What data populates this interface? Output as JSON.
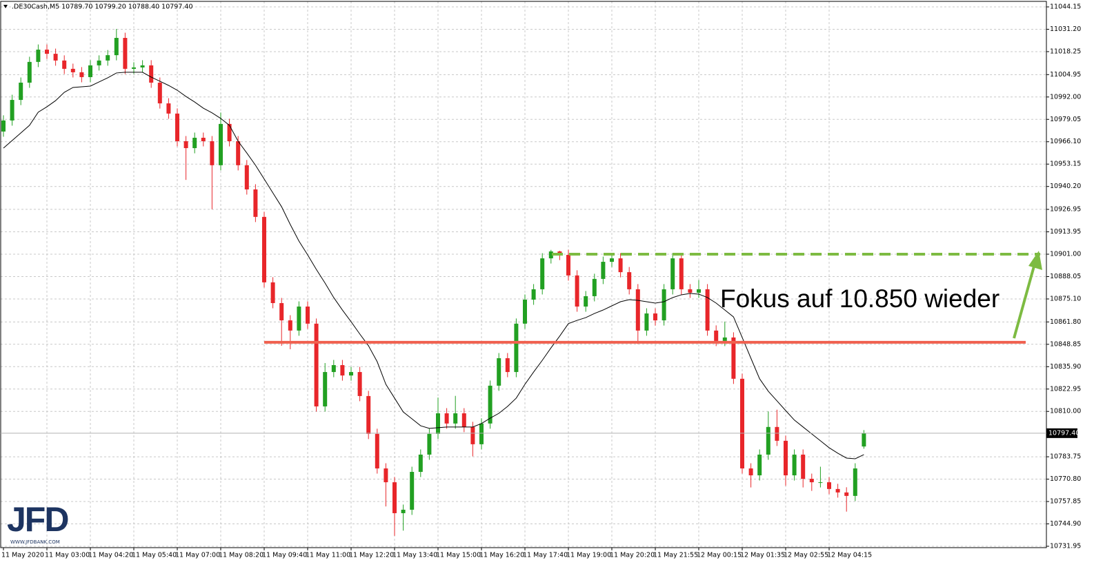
{
  "chart_data": {
    "type": "candlestick",
    "header": ".DE30Cash,M5  10789.70 10799.20 10788.40 10797.40",
    "annotation": "Fokus auf 10.850 wieder",
    "logo": {
      "text": "JFD",
      "url": "WWW.JFDBANK.COM"
    },
    "up_color": "#22a022",
    "down_color": "#e8262a",
    "grid": true,
    "categories": [
      "11 May 2020",
      null,
      null,
      null,
      null,
      "11 May 03:00",
      null,
      null,
      null,
      null,
      "11 May 04:20",
      null,
      null,
      null,
      null,
      "11 May 05:40",
      null,
      null,
      null,
      null,
      "11 May 07:00",
      null,
      null,
      null,
      null,
      "11 May 08:20",
      null,
      null,
      null,
      null,
      "11 May 09:40",
      null,
      null,
      null,
      null,
      "11 May 11:00",
      null,
      null,
      null,
      null,
      "11 May 12:20",
      null,
      null,
      null,
      null,
      "11 May 13:40",
      null,
      null,
      null,
      null,
      "11 May 15:00",
      null,
      null,
      null,
      null,
      "11 May 16:20",
      null,
      null,
      null,
      null,
      "11 May 17:40",
      null,
      null,
      null,
      null,
      "11 May 19:00",
      null,
      null,
      null,
      null,
      "11 May 20:20",
      null,
      null,
      null,
      null,
      "11 May 21:55",
      null,
      null,
      null,
      null,
      "12 May 00:15",
      null,
      null,
      null,
      null,
      "12 May 01:35",
      null,
      null,
      null,
      null,
      "12 May 02:55",
      null,
      null,
      null,
      null,
      "12 May 04:15",
      null,
      null,
      null,
      null
    ],
    "open": [
      10972,
      10978.4,
      10990.3,
      11000.3,
      11012.3,
      11019.4,
      11017,
      11013.1,
      11008.3,
      11006.3,
      11003.5,
      11010.3,
      11013.1,
      11016.2,
      11026.2,
      11008.3,
      11009.1,
      11010.3,
      11000.3,
      10988.3,
      10982.4,
      10966.4,
      10962.4,
      10968.4,
      10966.4,
      10952.5,
      10976.4,
      10966.4,
      10952.5,
      10938.5,
      10922.6,
      10884.7,
      10872.7,
      10862.7,
      10856.8,
      10870.7,
      10860.8,
      10812.9,
      10832.8,
      10836.8,
      10830.8,
      10832.8,
      10818.9,
      10797,
      10777,
      10769,
      10751.1,
      10753.1,
      10775,
      10785,
      10797,
      10808.9,
      10803,
      10808.9,
      10801,
      10791,
      10803,
      10824.9,
      10840.8,
      10832.8,
      10860.8,
      10874.7,
      10880.7,
      10898.6,
      10902.6,
      10900.6,
      10888.7,
      10870.7,
      10876.7,
      10886.7,
      10896.6,
      10898.6,
      10890.6,
      10880.7,
      10856.8,
      10866.7,
      10862.7,
      10880.7,
      10898.6,
      10880.7,
      10878.7,
      10880.7,
      10856.8,
      10850.8,
      10852.8,
      10828.9,
      10777,
      10773,
      10785,
      10801,
      10793,
      10773,
      10785,
      10771,
      10769,
      10769,
      10765.1,
      10763.1,
      10761.1,
      10789.7
    ],
    "high": [
      10981.4,
      10993.3,
      11003.3,
      11015.3,
      11022.4,
      11022.4,
      11020,
      11016.1,
      11011.3,
      11009.3,
      11013.3,
      11016.1,
      11019.2,
      11031.4,
      11029.2,
      11012.1,
      11013.3,
      11013.3,
      11003.3,
      10991.3,
      10985.4,
      10969.4,
      10971.4,
      10971.4,
      10969.4,
      10983,
      10979.4,
      10969.4,
      10955.5,
      10941.5,
      10925.6,
      10887.7,
      10875.7,
      10865.7,
      10873.7,
      10873.7,
      10863.8,
      10838,
      10839.8,
      10839.8,
      10835.8,
      10835.8,
      10821.9,
      10800,
      10780,
      10772,
      10756.1,
      10778,
      10788,
      10800,
      10818,
      10811.9,
      10819,
      10811.9,
      10804,
      10806,
      10827.9,
      10843.8,
      10843.8,
      10863.8,
      10877.7,
      10883.7,
      10901.6,
      10903.5,
      10903,
      10903.6,
      10891.7,
      10879.7,
      10889.7,
      10899.6,
      10901.6,
      10901.6,
      10893.6,
      10883.7,
      10869.7,
      10869.7,
      10883.7,
      10901.6,
      10901.6,
      10883.7,
      10886,
      10883.7,
      10859.8,
      10862,
      10855.8,
      10831.9,
      10780,
      10788,
      10810,
      10811,
      10796,
      10788,
      10788,
      10774,
      10778,
      10772,
      10768.1,
      10766.1,
      10780,
      10799.2
    ],
    "low": [
      10969,
      10975.4,
      10987.3,
      10997.3,
      11009.3,
      11014,
      11010.1,
      11005.3,
      11003.3,
      11000.5,
      11000.5,
      11007.3,
      11010.1,
      11013.2,
      11005.3,
      11005.3,
      11006.1,
      10997.3,
      10985.3,
      10979.4,
      10963.4,
      10944,
      10959.4,
      10963.4,
      10927,
      10949.5,
      10963.4,
      10949.5,
      10935.5,
      10919.6,
      10881.7,
      10869.7,
      10848,
      10846,
      10853.8,
      10857.8,
      10809.9,
      10809.9,
      10829.8,
      10827.8,
      10827.8,
      10815.9,
      10794,
      10774,
      10755,
      10738,
      10741,
      10750.1,
      10772,
      10782,
      10794,
      10800,
      10800,
      10798,
      10784,
      10788,
      10800,
      10821.9,
      10829.8,
      10829.8,
      10857.8,
      10871.7,
      10877.7,
      10895.6,
      10897.6,
      10885.7,
      10867.7,
      10867.7,
      10873.7,
      10883.7,
      10893.6,
      10887.6,
      10877.7,
      10849,
      10853.8,
      10859.7,
      10859.7,
      10877.7,
      10877.7,
      10875.7,
      10875.7,
      10853.8,
      10847.8,
      10847.8,
      10825.9,
      10774,
      10766,
      10770,
      10782,
      10790,
      10767,
      10770,
      10766,
      10764,
      10766,
      10762.1,
      10760.1,
      10752,
      10758.1,
      10788.4
    ],
    "close": [
      10978.4,
      10990.3,
      11000.3,
      11012.3,
      11019.4,
      11017,
      11013.1,
      11008.3,
      11006.3,
      11003.5,
      11010.3,
      11013.1,
      11016.2,
      11026.2,
      11008.3,
      11009.1,
      11010.3,
      11000.3,
      10988.3,
      10982.4,
      10966.4,
      10962.4,
      10968.4,
      10966.4,
      10952.5,
      10976.4,
      10966.4,
      10952.5,
      10938.5,
      10922.6,
      10884.7,
      10872.7,
      10862.7,
      10856.8,
      10870.7,
      10860.8,
      10812.9,
      10832.8,
      10836.8,
      10830.8,
      10832.8,
      10818.9,
      10797,
      10777,
      10769,
      10751.1,
      10753.1,
      10775,
      10785,
      10797,
      10808.9,
      10803,
      10808.9,
      10801,
      10791,
      10803,
      10824.9,
      10840.8,
      10832.8,
      10860.8,
      10874.7,
      10880.7,
      10898.6,
      10902.6,
      10900.6,
      10888.7,
      10870.7,
      10876.7,
      10886.7,
      10896.6,
      10898.6,
      10890.6,
      10880.7,
      10856.8,
      10866.7,
      10862.7,
      10880.7,
      10898.6,
      10880.7,
      10878.7,
      10880.7,
      10856.8,
      10850.8,
      10852.8,
      10828.9,
      10777,
      10773,
      10785,
      10801,
      10793,
      10773,
      10785,
      10771,
      10769,
      10769,
      10765.1,
      10763.1,
      10761.1,
      10777,
      10797.4
    ],
    "ma": {
      "color": "#000000",
      "values": [
        10962.4,
        10966.8,
        10971.2,
        10975.6,
        10983.2,
        10986.3,
        10989.9,
        10994.7,
        10997.5,
        10997.9,
        10998.3,
        11000.7,
        11003.1,
        11005.9,
        11006.3,
        11006.3,
        11006.3,
        11003.5,
        11001.1,
        10998.7,
        10995.9,
        10992.3,
        10989.1,
        10985.5,
        10982.8,
        10979.6,
        10975.6,
        10966.4,
        10959.6,
        10952.5,
        10944.5,
        10936.5,
        10928.5,
        10918.2,
        10908.6,
        10900.6,
        10892.2,
        10884.3,
        10875.9,
        10868.7,
        10861.9,
        10854.8,
        10848,
        10838.8,
        10825.7,
        10817.7,
        10809.7,
        10805.7,
        10801.7,
        10800.2,
        10800.6,
        10801,
        10801,
        10801,
        10801,
        10803,
        10806.1,
        10808.9,
        10812.9,
        10817.7,
        10825.7,
        10832.8,
        10839.6,
        10846.8,
        10853.6,
        10860.8,
        10862.7,
        10864.3,
        10866.7,
        10868.7,
        10871.1,
        10873.5,
        10874.7,
        10874.3,
        10873.5,
        10872.7,
        10873.5,
        10875.9,
        10877.5,
        10878.3,
        10877.9,
        10875.9,
        10872.7,
        10868.7,
        10864.7,
        10852.8,
        10840.8,
        10828.9,
        10821.7,
        10816.1,
        10810.5,
        10805,
        10801,
        10797,
        10793,
        10789,
        10785.8,
        10783,
        10782.6,
        10785
      ]
    },
    "support": {
      "value": 10850,
      "color": "#f0604f"
    },
    "resistance": {
      "value": 10901,
      "color": "#7dbb42"
    },
    "arrow_color": "#7dbb42",
    "last_price": {
      "value": 10797.4,
      "label": "10797.40"
    },
    "ylim": [
      10731.15,
      11047.34
    ],
    "yticks": [
      {
        "value": 11044.15,
        "label": "11044.15"
      },
      {
        "value": 11031.2,
        "label": "11031.20"
      },
      {
        "value": 11018.25,
        "label": "11018.25"
      },
      {
        "value": 11004.95,
        "label": "11004.95"
      },
      {
        "value": 10992,
        "label": "10992.00"
      },
      {
        "value": 10979.05,
        "label": "10979.05"
      },
      {
        "value": 10966.1,
        "label": "10966.10"
      },
      {
        "value": 10953.15,
        "label": "10953.15"
      },
      {
        "value": 10940.2,
        "label": "10940.20"
      },
      {
        "value": 10926.95,
        "label": "10926.95"
      },
      {
        "value": 10913.95,
        "label": "10913.95"
      },
      {
        "value": 10901,
        "label": "10901.00"
      },
      {
        "value": 10888.05,
        "label": "10888.05"
      },
      {
        "value": 10875.1,
        "label": "10875.10"
      },
      {
        "value": 10861.8,
        "label": "10861.80"
      },
      {
        "value": 10848.85,
        "label": "10848.85"
      },
      {
        "value": 10835.9,
        "label": "10835.90"
      },
      {
        "value": 10822.95,
        "label": "10822.95"
      },
      {
        "value": 10810,
        "label": "10810.00"
      },
      {
        "value": 10783.75,
        "label": "10783.75"
      },
      {
        "value": 10770.8,
        "label": "10770.80"
      },
      {
        "value": 10757.85,
        "label": "10757.85"
      },
      {
        "value": 10744.9,
        "label": "10744.90"
      },
      {
        "value": 10731.95,
        "label": "10731.95"
      }
    ]
  }
}
